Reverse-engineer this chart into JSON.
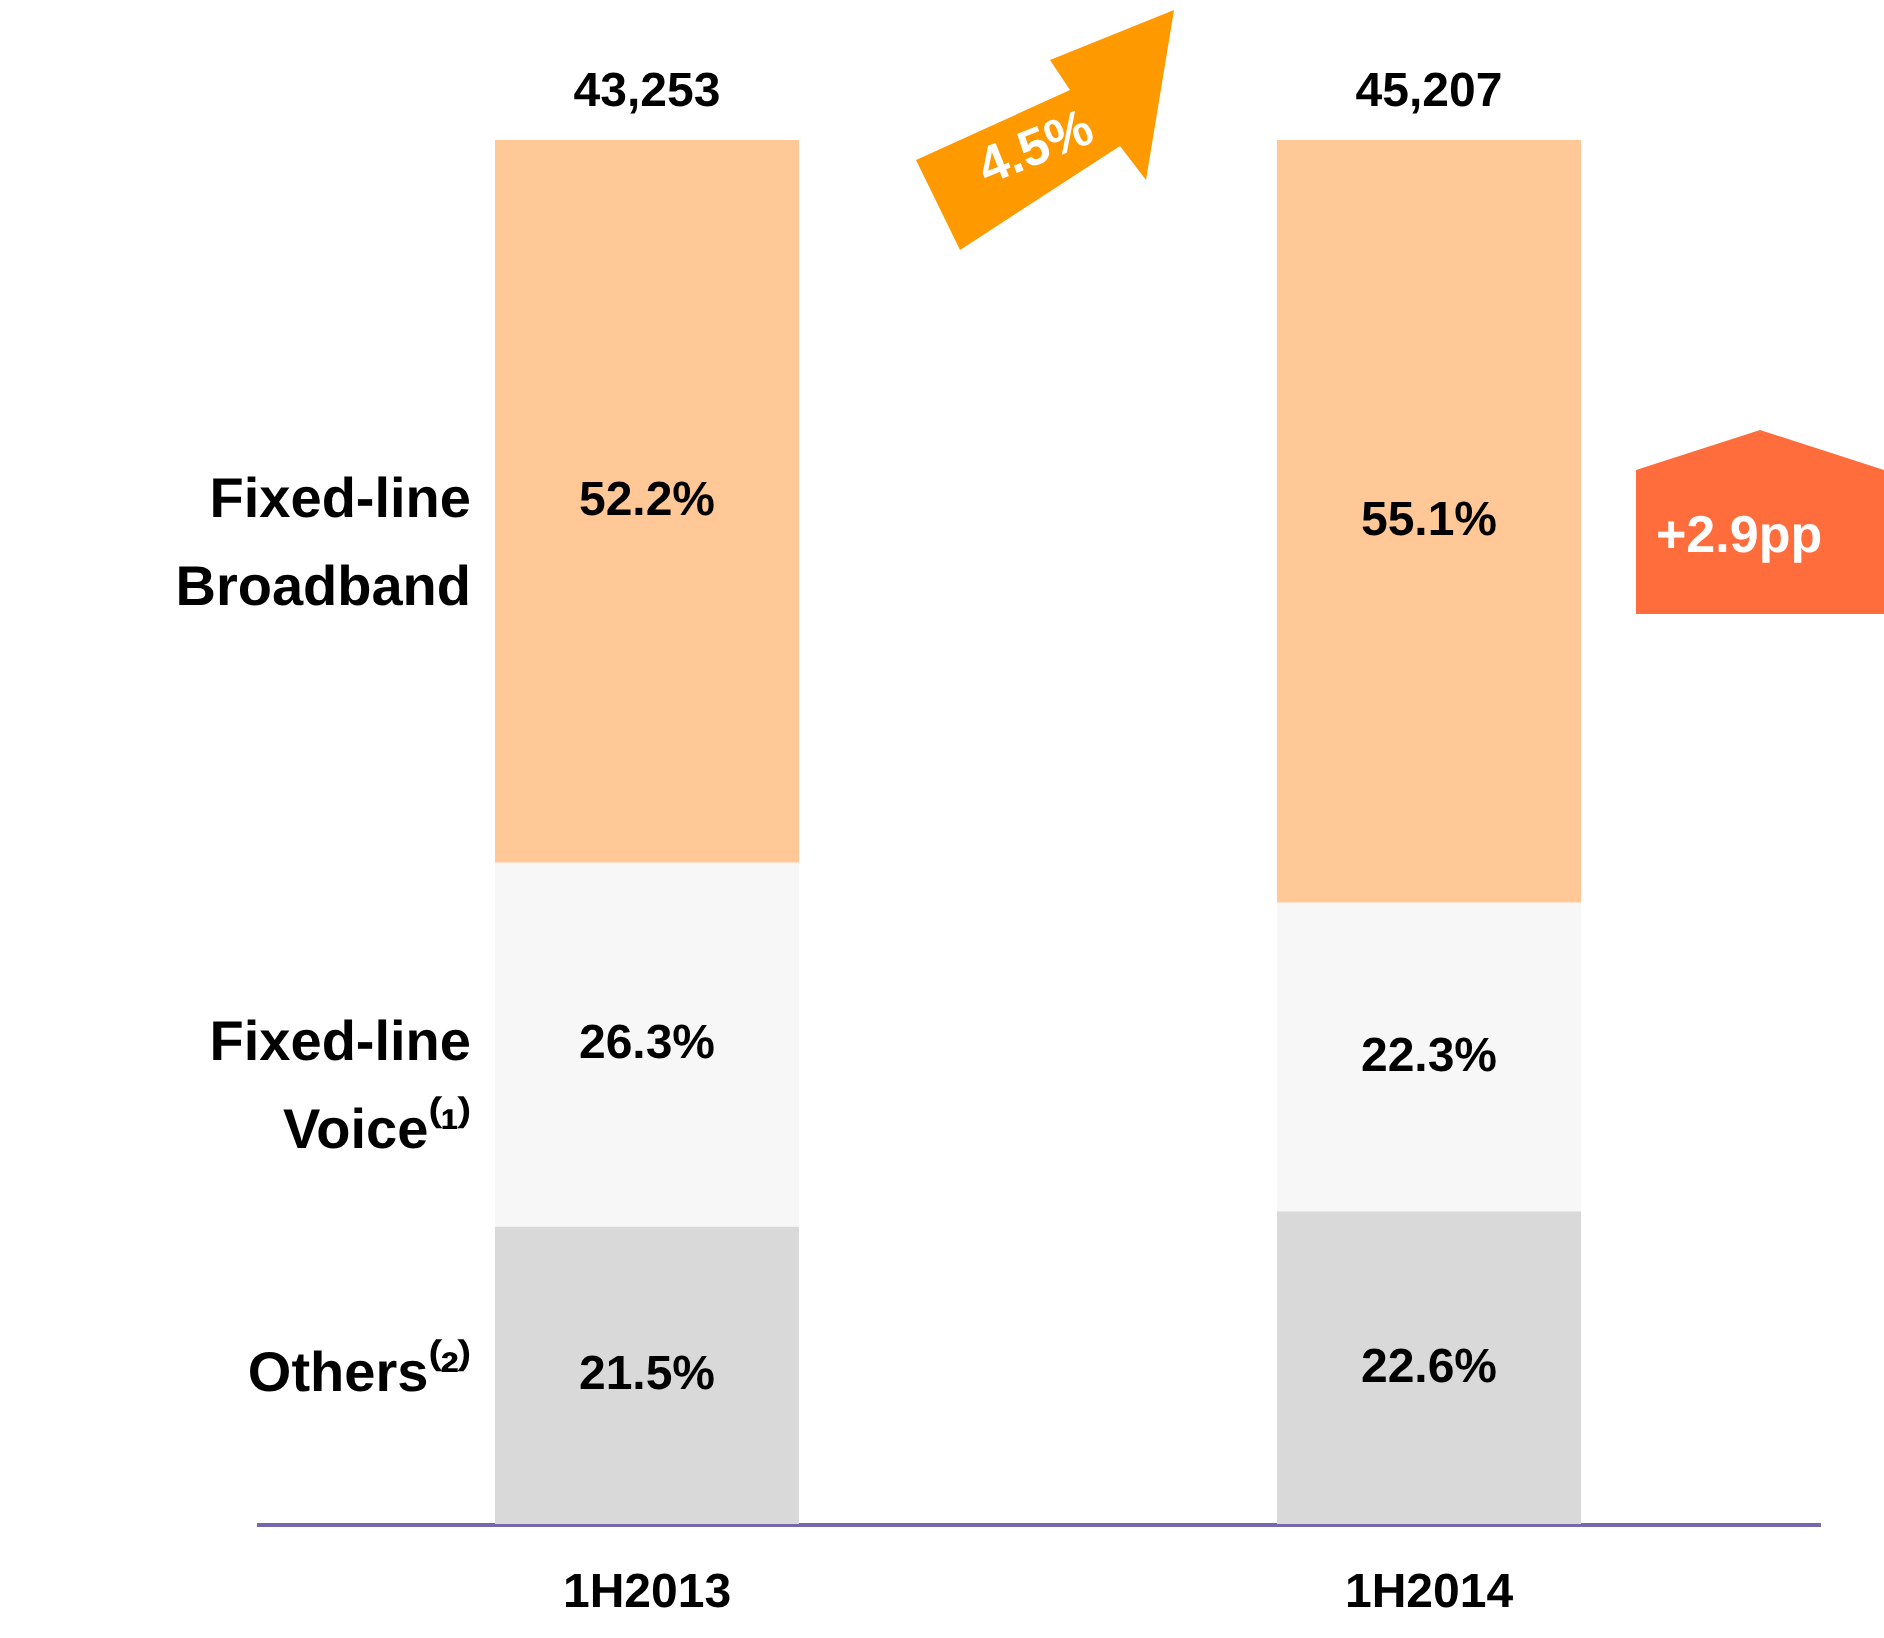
{
  "chart_data": {
    "type": "bar",
    "stacked": true,
    "categories": [
      "1H2013",
      "1H2014"
    ],
    "series": [
      {
        "name": "Others⁽²⁾",
        "color": "#d9d9d9",
        "values": [
          21.5,
          22.6
        ],
        "value_labels": [
          "21.5%",
          "22.6%"
        ]
      },
      {
        "name": "Fixed-line Voice⁽¹⁾",
        "color": "#f7f7f7",
        "values": [
          26.3,
          22.3
        ],
        "value_labels": [
          "26.3%",
          "22.3%"
        ]
      },
      {
        "name": "Fixed-line Broadband",
        "color": "#ffc896",
        "values": [
          52.2,
          55.1
        ],
        "value_labels": [
          "52.2%",
          "55.1%"
        ]
      }
    ],
    "annotations": [
      {
        "text": "43,253",
        "x": "1H2013",
        "y": 100
      },
      {
        "text": "45,207",
        "x": "1H2014",
        "y": 100
      },
      "4.5%",
      "+2.9pp"
    ],
    "legend": "left"
  }
}
